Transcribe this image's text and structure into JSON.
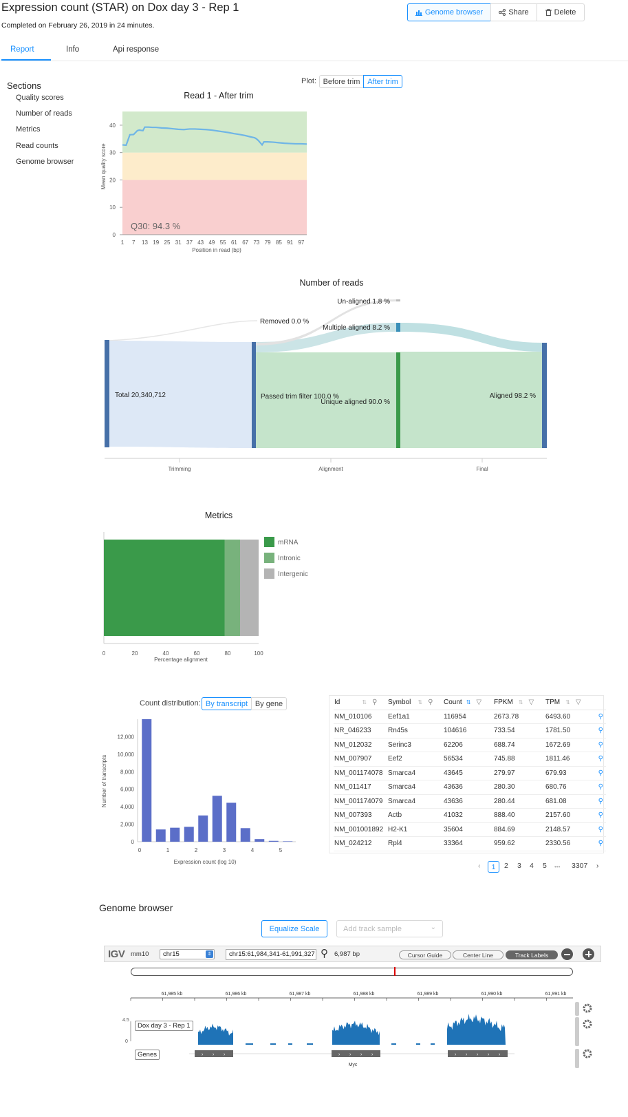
{
  "header": {
    "title": "Expression count (STAR) on Dox day 3 - Rep 1",
    "subtitle": "Completed on February 26, 2019 in 24 minutes.",
    "genome_browser_label": "Genome browser",
    "share_label": "Share",
    "delete_label": "Delete"
  },
  "tabs": [
    "Report",
    "Info",
    "Api response"
  ],
  "sidebar": {
    "title": "Sections",
    "items": [
      "Quality scores",
      "Number of reads",
      "Metrics",
      "Read counts",
      "Genome browser"
    ]
  },
  "quality_plot": {
    "plot_label": "Plot:",
    "options": [
      "Before trim",
      "After trim"
    ],
    "selected": "After trim",
    "annotation": "Q30: 94.3 %"
  },
  "sankey_axis": [
    "Trimming",
    "Alignment",
    "Final"
  ],
  "read_counts": {
    "count_distribution_label": "Count distribution:",
    "options": [
      "By transcript",
      "By gene"
    ],
    "selected": "By transcript",
    "table": {
      "columns": [
        "Id",
        "Symbol",
        "Count",
        "FPKM",
        "TPM"
      ],
      "rows": [
        [
          "NM_010106",
          "Eef1a1",
          "116954",
          "2673.78",
          "6493.60"
        ],
        [
          "NR_046233",
          "Rn45s",
          "104616",
          "733.54",
          "1781.50"
        ],
        [
          "NM_012032",
          "Serinc3",
          "62206",
          "688.74",
          "1672.69"
        ],
        [
          "NM_007907",
          "Eef2",
          "56534",
          "745.88",
          "1811.46"
        ],
        [
          "NM_001174078",
          "Smarca4",
          "43645",
          "279.97",
          "679.93"
        ],
        [
          "NM_011417",
          "Smarca4",
          "43636",
          "280.30",
          "680.76"
        ],
        [
          "NM_001174079",
          "Smarca4",
          "43636",
          "280.44",
          "681.08"
        ],
        [
          "NM_007393",
          "Actb",
          "41032",
          "888.40",
          "2157.60"
        ],
        [
          "NM_001001892",
          "H2-K1",
          "35604",
          "884.69",
          "2148.57"
        ],
        [
          "NM_024212",
          "Rpl4",
          "33364",
          "959.62",
          "2330.56"
        ]
      ]
    },
    "pagination": {
      "pages": [
        "1",
        "2",
        "3",
        "4",
        "5"
      ],
      "current": "1",
      "ellipsis": "•••",
      "last": "3307"
    }
  },
  "genome_browser": {
    "title": "Genome browser",
    "equalize_label": "Equalize Scale",
    "add_track_placeholder": "Add track sample",
    "igv_logo": "IGV",
    "genome": "mm10",
    "chromosome": "chr15",
    "locus": "chr15:61,984,341-61,991,327",
    "span": "6,987 bp",
    "cursor_guide": "Cursor Guide",
    "center_line": "Center Line",
    "track_labels": "Track Labels",
    "ruler_ticks": [
      "61,985 kb",
      "61,986 kb",
      "61,987 kb",
      "61,988 kb",
      "61,989 kb",
      "61,990 kb",
      "61,991 kb"
    ],
    "track_name": "Dox day 3 - Rep 1",
    "track_scale_max": "4.5",
    "track_scale_min": "0",
    "genes_label": "Genes",
    "gene_name": "Myc"
  },
  "chart_data": [
    {
      "type": "line",
      "title": "Read 1 - After trim",
      "xlabel": "Position in read (bp)",
      "ylabel": "Mean quality score",
      "x_ticks": [
        "1",
        "7",
        "13",
        "19",
        "25",
        "31",
        "37",
        "43",
        "49",
        "55",
        "61",
        "67",
        "73",
        "79",
        "85",
        "91",
        "97"
      ],
      "y_ticks": [
        "0",
        "10",
        "20",
        "30",
        "40"
      ],
      "ylim": [
        0,
        45
      ],
      "bands": [
        {
          "from": 0,
          "to": 20,
          "color": "#f9cfcf"
        },
        {
          "from": 20,
          "to": 30,
          "color": "#fdeccb"
        },
        {
          "from": 30,
          "to": 45,
          "color": "#d2e9cb"
        }
      ],
      "x": [
        1,
        3,
        5,
        7,
        9,
        10,
        12,
        13,
        15,
        17,
        19,
        22,
        25,
        28,
        31,
        34,
        37,
        40,
        43,
        46,
        49,
        52,
        55,
        58,
        61,
        64,
        67,
        70,
        72,
        73,
        74,
        75,
        76,
        77,
        79,
        82,
        85,
        88,
        91,
        94,
        97,
        100
      ],
      "y": [
        32.8,
        32.7,
        36.5,
        36.6,
        38.0,
        38.2,
        38.0,
        39.3,
        39.3,
        39.2,
        39.2,
        39.0,
        38.9,
        38.7,
        38.5,
        38.4,
        38.6,
        38.6,
        38.5,
        38.4,
        38.2,
        37.9,
        37.6,
        37.3,
        36.9,
        36.6,
        36.2,
        35.7,
        35.4,
        35.0,
        34.4,
        33.6,
        32.8,
        33.9,
        33.9,
        33.8,
        33.6,
        33.4,
        33.3,
        33.2,
        33.2,
        33.1
      ],
      "color": "#6fb5e6"
    },
    {
      "type": "sankey",
      "title": "Number of reads",
      "nodes": [
        "Total 20,340,712",
        "Removed 0.0 %",
        "Passed trim filter 100.0 %",
        "Un-aligned 1.8 %",
        "Multiple aligned 8.2 %",
        "Unique aligned 90.0 %",
        "Aligned 98.2 %"
      ]
    },
    {
      "type": "bar",
      "title": "Metrics",
      "xlabel": "Percentage alignment",
      "x_ticks": [
        "0",
        "20",
        "40",
        "60",
        "80",
        "100"
      ],
      "xlim": [
        0,
        100
      ],
      "series": [
        {
          "name": "mRNA",
          "value": 78,
          "color": "#3a9a4a"
        },
        {
          "name": "Intronic",
          "value": 10,
          "color": "#78b27c"
        },
        {
          "name": "Intergenic",
          "value": 12,
          "color": "#b4b4b4"
        }
      ]
    },
    {
      "type": "bar",
      "xlabel": "Expression count (log 10)",
      "ylabel": "Number of transcripts",
      "x_ticks": [
        "0",
        "1",
        "2",
        "3",
        "4",
        "5"
      ],
      "y_ticks": [
        "0",
        "2,000",
        "4,000",
        "6,000",
        "8,000",
        "10,000",
        "12,000"
      ],
      "ylim": [
        0,
        14000
      ],
      "bin_centers": [
        0.25,
        0.75,
        1.25,
        1.75,
        2.25,
        2.75,
        3.25,
        3.75,
        4.25,
        4.75,
        5.25
      ],
      "values": [
        14000,
        1400,
        1600,
        1700,
        3000,
        5250,
        4450,
        1550,
        300,
        100,
        50
      ],
      "color": "#5b6ec8"
    }
  ]
}
